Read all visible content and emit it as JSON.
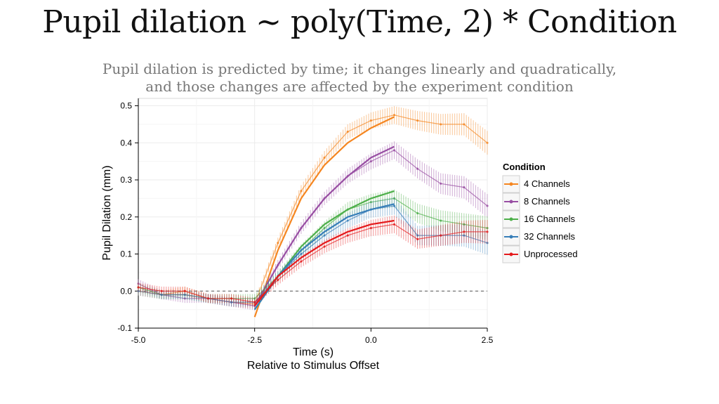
{
  "slide": {
    "title": "Pupil dilation ~ poly(Time, 2) * Condition",
    "subtitle_lines": [
      "Pupil dilation is predicted by time; it changes linearly and quadratically,",
      "and those changes are affected by the experiment condition"
    ]
  },
  "chart_data": {
    "type": "line",
    "xlabel": "Time (s)",
    "xlabel_sub": "Relative to Stimulus Offset",
    "ylabel": "Pupil Dilation (mm)",
    "xlim": [
      -5.0,
      2.5
    ],
    "ylim": [
      -0.1,
      0.52
    ],
    "xticks": [
      -5.0,
      -2.5,
      0.0,
      2.5
    ],
    "xtick_labels": [
      "-5.0",
      "-2.5",
      "0.0",
      "2.5"
    ],
    "yticks": [
      -0.1,
      0.0,
      0.1,
      0.2,
      0.3,
      0.4,
      0.5
    ],
    "ytick_labels": [
      "-0.1",
      "0.0",
      "0.1",
      "0.2",
      "0.3",
      "0.4",
      "0.5"
    ],
    "reference_line_y": 0.0,
    "grid": true,
    "legend": {
      "title": "Condition",
      "placement": "right"
    },
    "series": [
      {
        "name": "4 Channels",
        "color": "#F58620",
        "observed": {
          "x": [
            -5.0,
            -4.5,
            -4.0,
            -3.5,
            -3.0,
            -2.5,
            -2.0,
            -1.5,
            -1.0,
            -0.5,
            0.0,
            0.5,
            1.0,
            1.5,
            2.0,
            2.5
          ],
          "y": [
            0.0,
            -0.01,
            0.0,
            -0.02,
            -0.03,
            -0.035,
            0.13,
            0.27,
            0.36,
            0.43,
            0.46,
            0.475,
            0.46,
            0.45,
            0.45,
            0.4
          ]
        },
        "fit": {
          "x": [
            -2.5,
            -2.0,
            -1.5,
            -1.0,
            -0.5,
            0.0,
            0.5
          ],
          "y": [
            -0.07,
            0.11,
            0.25,
            0.34,
            0.4,
            0.44,
            0.47
          ]
        }
      },
      {
        "name": "8 Channels",
        "color": "#984EA3",
        "observed": {
          "x": [
            -5.0,
            -4.5,
            -4.0,
            -3.5,
            -3.0,
            -2.5,
            -2.0,
            -1.5,
            -1.0,
            -0.5,
            0.0,
            0.5,
            1.0,
            1.5,
            2.0,
            2.5
          ],
          "y": [
            0.02,
            -0.01,
            -0.02,
            -0.02,
            -0.03,
            -0.04,
            0.07,
            0.17,
            0.25,
            0.31,
            0.35,
            0.38,
            0.33,
            0.29,
            0.28,
            0.23
          ]
        },
        "fit": {
          "x": [
            -2.5,
            -2.0,
            -1.5,
            -1.0,
            -0.5,
            0.0,
            0.5
          ],
          "y": [
            -0.04,
            0.07,
            0.17,
            0.25,
            0.31,
            0.36,
            0.39
          ]
        }
      },
      {
        "name": "16 Channels",
        "color": "#4DAF4A",
        "observed": {
          "x": [
            -5.0,
            -4.5,
            -4.0,
            -3.5,
            -3.0,
            -2.5,
            -2.0,
            -1.5,
            -1.0,
            -0.5,
            0.0,
            0.5,
            1.0,
            1.5,
            2.0,
            2.5
          ],
          "y": [
            0.01,
            -0.01,
            -0.01,
            -0.02,
            -0.02,
            -0.02,
            0.04,
            0.11,
            0.17,
            0.22,
            0.24,
            0.25,
            0.21,
            0.19,
            0.18,
            0.17
          ]
        },
        "fit": {
          "x": [
            -2.5,
            -2.0,
            -1.5,
            -1.0,
            -0.5,
            0.0,
            0.5
          ],
          "y": [
            -0.05,
            0.04,
            0.12,
            0.18,
            0.22,
            0.25,
            0.27
          ]
        }
      },
      {
        "name": "32 Channels",
        "color": "#377EB8",
        "observed": {
          "x": [
            -5.0,
            -4.5,
            -4.0,
            -3.5,
            -3.0,
            -2.5,
            -2.0,
            -1.5,
            -1.0,
            -0.5,
            0.0,
            0.5,
            1.0,
            1.5,
            2.0,
            2.5
          ],
          "y": [
            0.0,
            -0.01,
            -0.01,
            -0.02,
            -0.03,
            -0.03,
            0.04,
            0.1,
            0.15,
            0.19,
            0.22,
            0.23,
            0.15,
            0.15,
            0.15,
            0.13
          ]
        },
        "fit": {
          "x": [
            -2.5,
            -2.0,
            -1.5,
            -1.0,
            -0.5,
            0.0,
            0.5
          ],
          "y": [
            -0.05,
            0.04,
            0.11,
            0.16,
            0.2,
            0.22,
            0.235
          ]
        }
      },
      {
        "name": "Unprocessed",
        "color": "#E41A1C",
        "observed": {
          "x": [
            -5.0,
            -4.5,
            -4.0,
            -3.5,
            -3.0,
            -2.5,
            -2.0,
            -1.5,
            -1.0,
            -0.5,
            0.0,
            0.5,
            1.0,
            1.5,
            2.0,
            2.5
          ],
          "y": [
            0.01,
            0.0,
            0.0,
            -0.02,
            -0.02,
            -0.03,
            0.03,
            0.08,
            0.12,
            0.15,
            0.17,
            0.18,
            0.14,
            0.15,
            0.16,
            0.16
          ]
        },
        "fit": {
          "x": [
            -2.5,
            -2.0,
            -1.5,
            -1.0,
            -0.5,
            0.0,
            0.5
          ],
          "y": [
            -0.04,
            0.04,
            0.09,
            0.13,
            0.16,
            0.18,
            0.19
          ]
        }
      }
    ]
  }
}
